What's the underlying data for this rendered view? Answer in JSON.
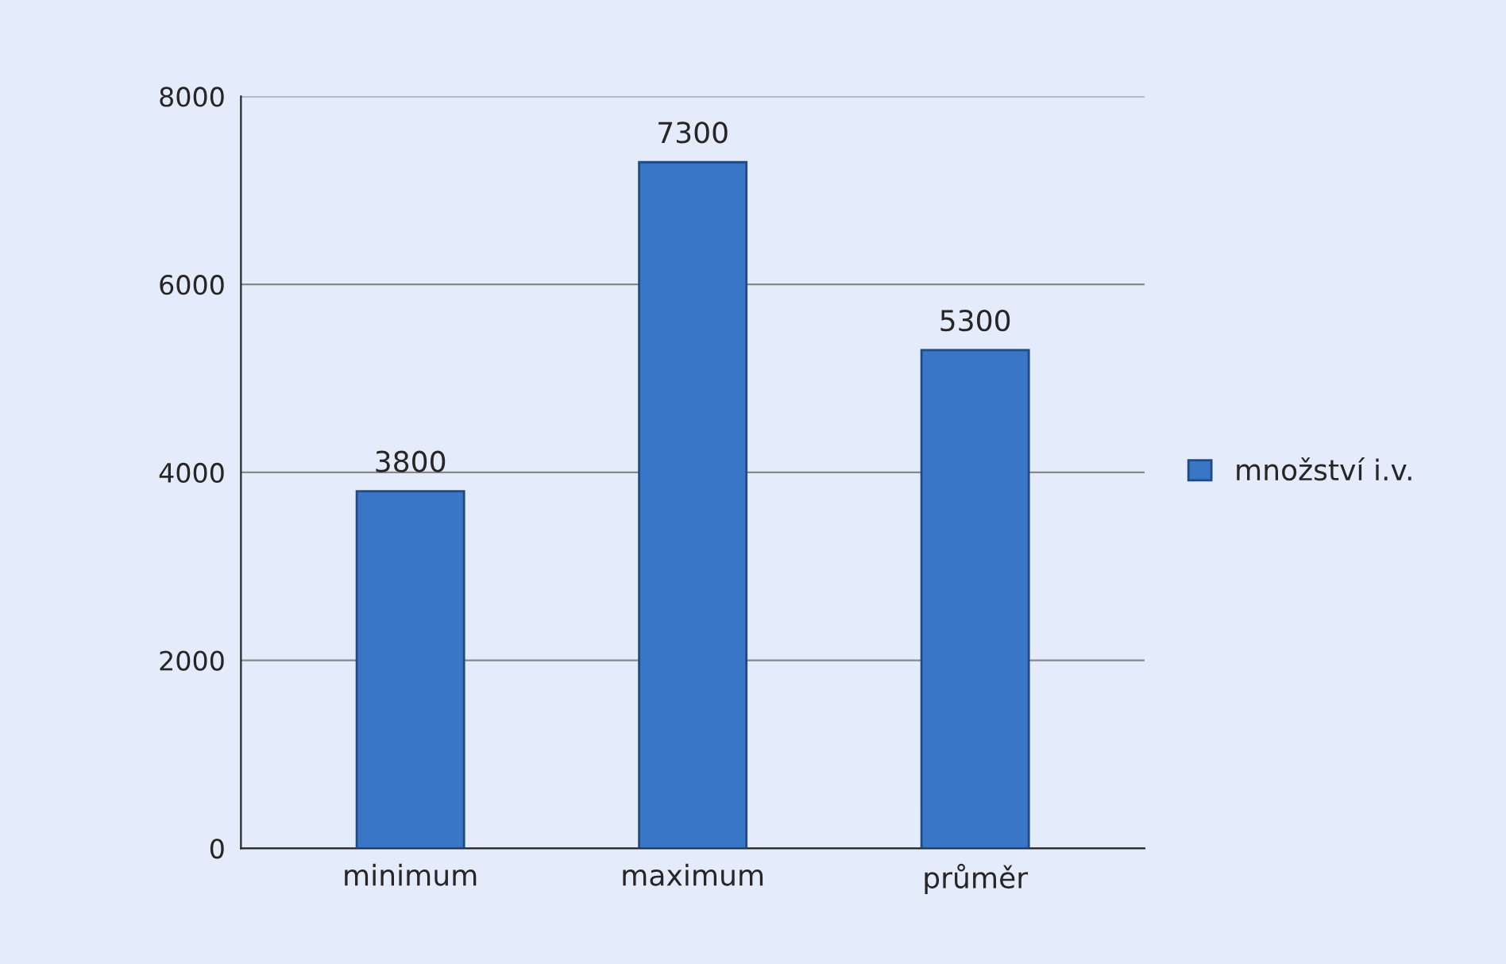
{
  "chart_data": {
    "type": "bar",
    "categories": [
      "minimum",
      "maximum",
      "průměr"
    ],
    "series": [
      {
        "name": "množství i.v.",
        "color": "#3a76c6",
        "values": [
          3800,
          7300,
          5300
        ]
      }
    ],
    "ylim": [
      0,
      8000
    ],
    "yticks": [
      0,
      2000,
      4000,
      6000,
      8000
    ],
    "grid": "y",
    "legend": "right",
    "data_labels": true
  }
}
